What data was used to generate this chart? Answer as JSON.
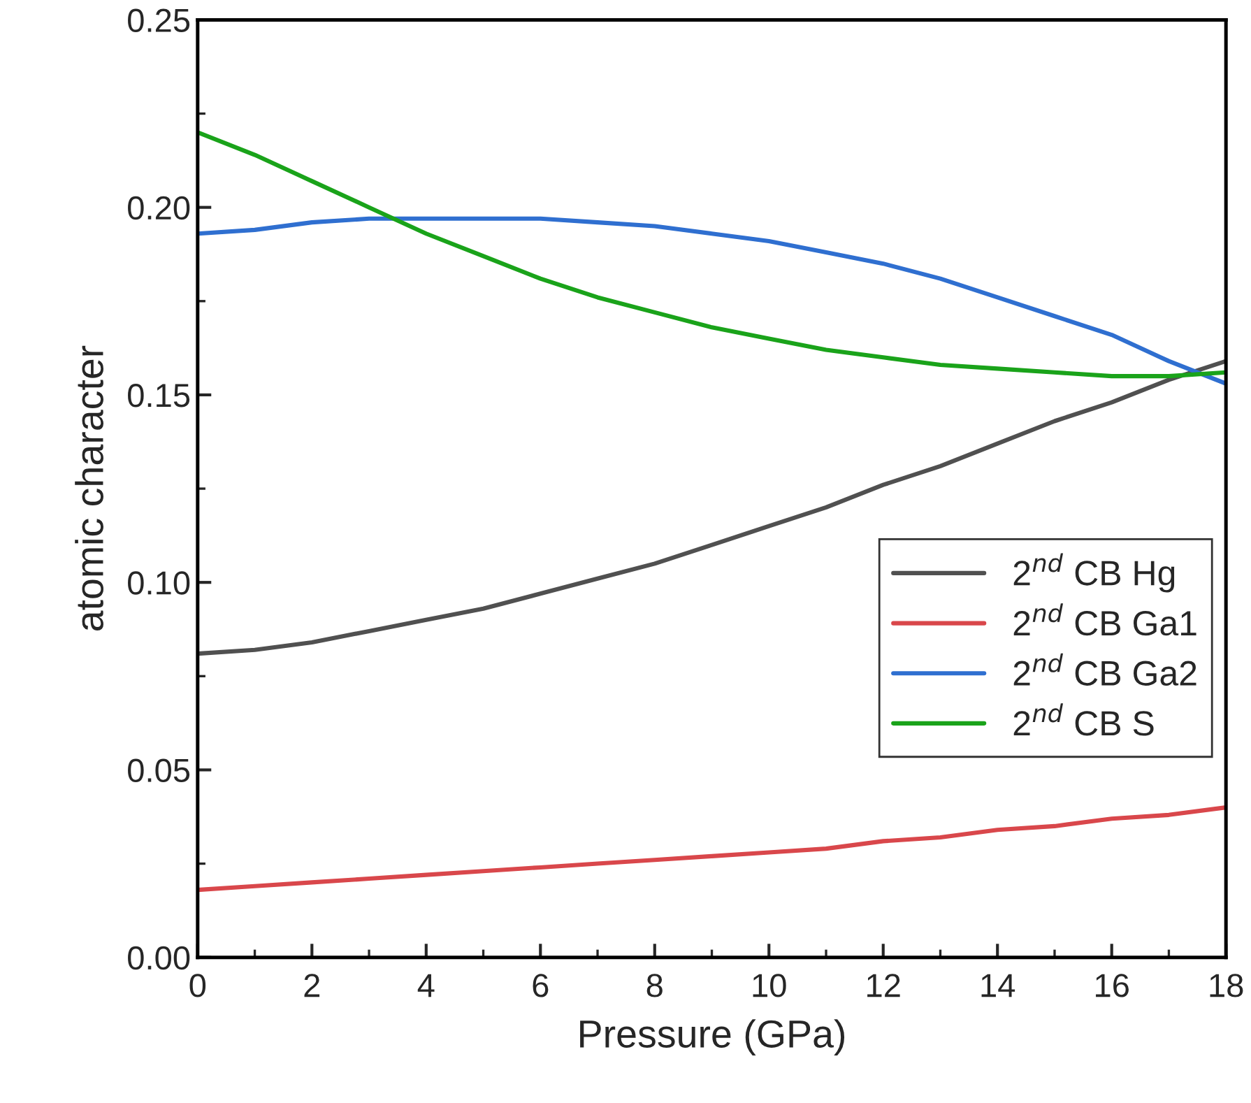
{
  "chart_data": {
    "type": "line",
    "xlabel": "Pressure (GPa)",
    "ylabel": "atomic character",
    "x": [
      0,
      1,
      2,
      3,
      4,
      5,
      6,
      7,
      8,
      9,
      10,
      11,
      12,
      13,
      14,
      15,
      16,
      17,
      18
    ],
    "series": [
      {
        "name": "2$^{nd}$ CB Hg",
        "color": "#505050",
        "values": [
          0.081,
          0.082,
          0.084,
          0.087,
          0.09,
          0.093,
          0.097,
          0.101,
          0.105,
          0.11,
          0.115,
          0.12,
          0.126,
          0.131,
          0.137,
          0.143,
          0.148,
          0.154,
          0.159
        ]
      },
      {
        "name": "2$^{nd}$ CB Ga1",
        "color": "#d9474b",
        "values": [
          0.018,
          0.019,
          0.02,
          0.021,
          0.022,
          0.023,
          0.024,
          0.025,
          0.026,
          0.027,
          0.028,
          0.029,
          0.031,
          0.032,
          0.034,
          0.035,
          0.037,
          0.038,
          0.04
        ]
      },
      {
        "name": "2$^{nd}$ CB Ga2",
        "color": "#2f6fd0",
        "values": [
          0.193,
          0.194,
          0.196,
          0.197,
          0.197,
          0.197,
          0.197,
          0.196,
          0.195,
          0.193,
          0.191,
          0.188,
          0.185,
          0.181,
          0.176,
          0.171,
          0.166,
          0.159,
          0.153
        ]
      },
      {
        "name": "2$^{nd}$ CB S",
        "color": "#1aa31a",
        "values": [
          0.22,
          0.214,
          0.207,
          0.2,
          0.193,
          0.187,
          0.181,
          0.176,
          0.172,
          0.168,
          0.165,
          0.162,
          0.16,
          0.158,
          0.157,
          0.156,
          0.155,
          0.155,
          0.156
        ]
      }
    ],
    "xlim": [
      0,
      18
    ],
    "xticks": [
      0,
      2,
      4,
      6,
      8,
      10,
      12,
      14,
      16,
      18
    ],
    "ylim": [
      0,
      0.25
    ],
    "yticks": [
      {
        "value": 0,
        "label": "0.00"
      },
      {
        "value": 0.05,
        "label": "0.05"
      },
      {
        "value": 0.1,
        "label": "0.10"
      },
      {
        "value": 0.15,
        "label": "0.15"
      },
      {
        "value": 0.2,
        "label": "0.20"
      },
      {
        "value": 0.25,
        "label": "0.25"
      }
    ],
    "grid": false,
    "legend": "right",
    "marker": "none",
    "line_style": "solid"
  }
}
